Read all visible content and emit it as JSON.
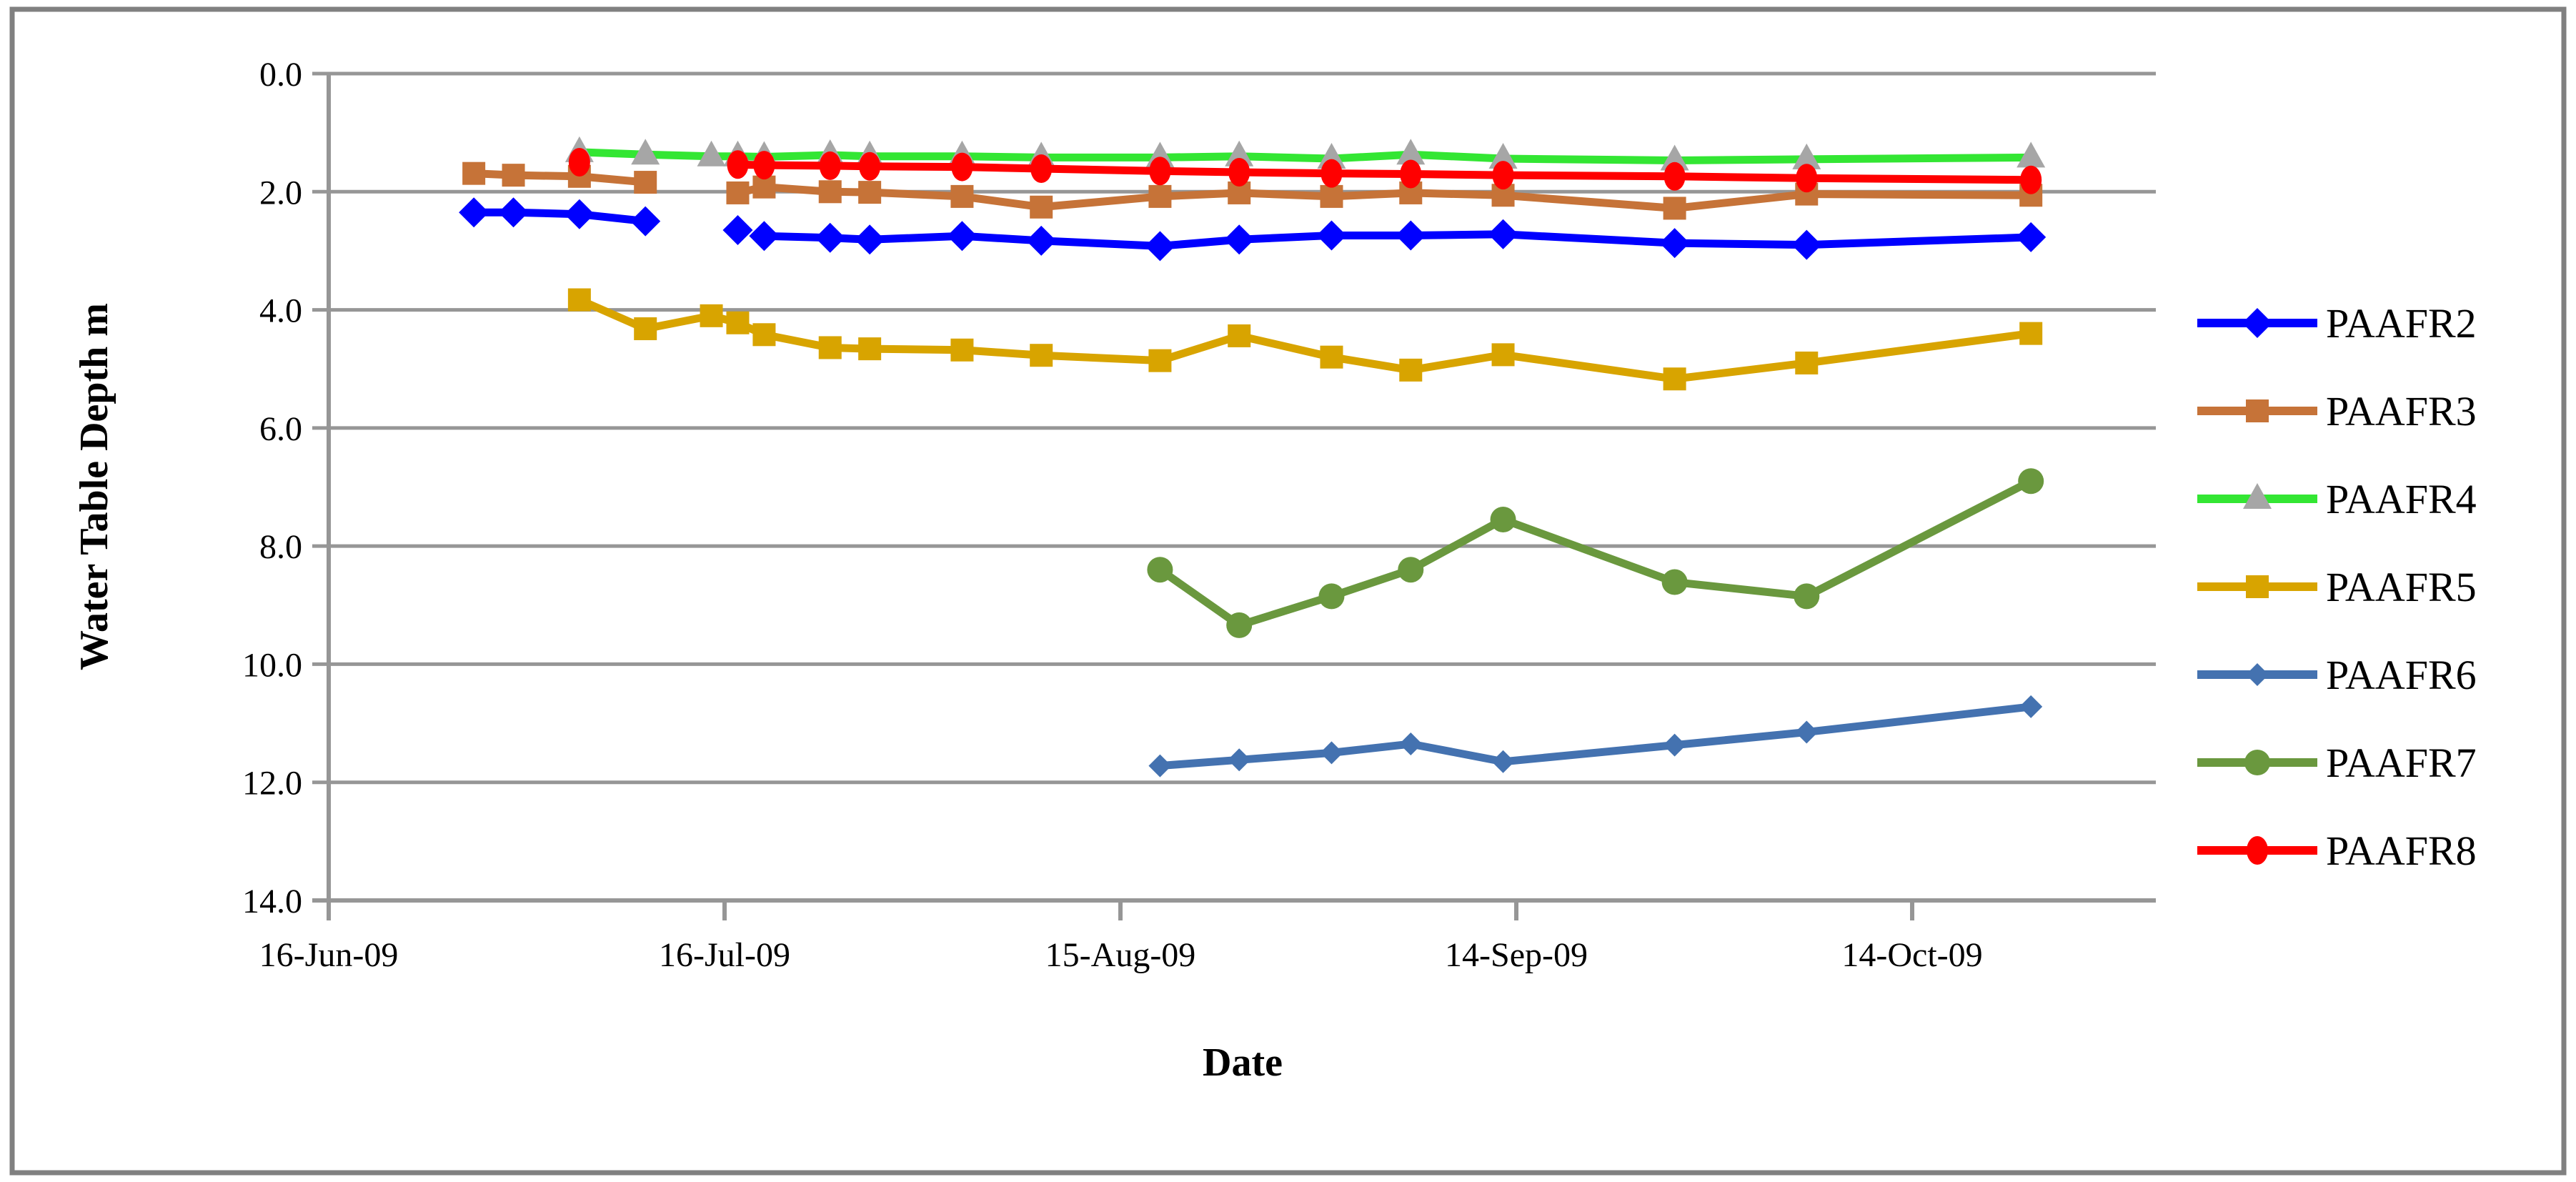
{
  "figure": {
    "background": "#FFFFFF",
    "border_color": "#808080",
    "gridline_color": "#969696",
    "axis_color": "#969696",
    "text_color": "#000000"
  },
  "chart_data": {
    "type": "line",
    "title": "",
    "xlabel": "Date",
    "ylabel": "Water Table Depth m",
    "grid": true,
    "legend_position": "right",
    "y_axis": {
      "inverted": true,
      "min": 0.0,
      "max": 14.0,
      "tick_interval": 2.0,
      "tick_labels": [
        "0.0",
        "2.0",
        "4.0",
        "6.0",
        "8.0",
        "10.0",
        "12.0",
        "14.0"
      ]
    },
    "x_axis": {
      "start": "16-Jun-09",
      "tick_interval_days": 30,
      "tick_labels": [
        "16-Jun-09",
        "16-Jul-09",
        "15-Aug-09",
        "14-Sep-09",
        "14-Oct-09"
      ]
    },
    "series": [
      {
        "name": "PAAFR2",
        "color": "#0000FF",
        "marker": "diamond",
        "marker_color": "#0000FF",
        "marker_size": 21,
        "breaks_after": [
          "10-Jul-09",
          "17-Jul-09"
        ],
        "points": [
          {
            "date": "27-Jun-09",
            "depth": 2.35
          },
          {
            "date": "30-Jun-09",
            "depth": 2.35
          },
          {
            "date": "05-Jul-09",
            "depth": 2.38
          },
          {
            "date": "10-Jul-09",
            "depth": 2.5
          },
          {
            "date": "17-Jul-09",
            "depth": 2.65
          },
          {
            "date": "19-Jul-09",
            "depth": 2.75
          },
          {
            "date": "24-Jul-09",
            "depth": 2.78
          },
          {
            "date": "27-Jul-09",
            "depth": 2.81
          },
          {
            "date": "03-Aug-09",
            "depth": 2.75
          },
          {
            "date": "09-Aug-09",
            "depth": 2.83
          },
          {
            "date": "18-Aug-09",
            "depth": 2.92
          },
          {
            "date": "24-Aug-09",
            "depth": 2.81
          },
          {
            "date": "31-Aug-09",
            "depth": 2.74
          },
          {
            "date": "06-Sep-09",
            "depth": 2.74
          },
          {
            "date": "13-Sep-09",
            "depth": 2.72
          },
          {
            "date": "26-Sep-09",
            "depth": 2.87
          },
          {
            "date": "06-Oct-09",
            "depth": 2.9
          },
          {
            "date": "23-Oct-09",
            "depth": 2.77
          }
        ]
      },
      {
        "name": "PAAFR3",
        "color": "#C67338",
        "marker": "square",
        "marker_color": "#C67338",
        "marker_size": 32,
        "breaks_after": [
          "10-Jul-09"
        ],
        "points": [
          {
            "date": "27-Jun-09",
            "depth": 1.69
          },
          {
            "date": "30-Jun-09",
            "depth": 1.72
          },
          {
            "date": "05-Jul-09",
            "depth": 1.74
          },
          {
            "date": "10-Jul-09",
            "depth": 1.84
          },
          {
            "date": "17-Jul-09",
            "depth": 2.02
          },
          {
            "date": "19-Jul-09",
            "depth": 1.92
          },
          {
            "date": "24-Jul-09",
            "depth": 2.0
          },
          {
            "date": "27-Jul-09",
            "depth": 2.01
          },
          {
            "date": "03-Aug-09",
            "depth": 2.08
          },
          {
            "date": "09-Aug-09",
            "depth": 2.26
          },
          {
            "date": "18-Aug-09",
            "depth": 2.08
          },
          {
            "date": "24-Aug-09",
            "depth": 2.02
          },
          {
            "date": "31-Aug-09",
            "depth": 2.08
          },
          {
            "date": "06-Sep-09",
            "depth": 2.02
          },
          {
            "date": "13-Sep-09",
            "depth": 2.06
          },
          {
            "date": "26-Sep-09",
            "depth": 2.28
          },
          {
            "date": "06-Oct-09",
            "depth": 2.04
          },
          {
            "date": "23-Oct-09",
            "depth": 2.06
          }
        ]
      },
      {
        "name": "PAAFR4",
        "color": "#33E633",
        "marker": "triangle",
        "marker_color": "#A6A6A6",
        "marker_size": 40,
        "breaks_after": [],
        "points": [
          {
            "date": "05-Jul-09",
            "depth": 1.33
          },
          {
            "date": "10-Jul-09",
            "depth": 1.37
          },
          {
            "date": "15-Jul-09",
            "depth": 1.4
          },
          {
            "date": "17-Jul-09",
            "depth": 1.4
          },
          {
            "date": "19-Jul-09",
            "depth": 1.41
          },
          {
            "date": "24-Jul-09",
            "depth": 1.38
          },
          {
            "date": "27-Jul-09",
            "depth": 1.4
          },
          {
            "date": "03-Aug-09",
            "depth": 1.4
          },
          {
            "date": "09-Aug-09",
            "depth": 1.42
          },
          {
            "date": "18-Aug-09",
            "depth": 1.42
          },
          {
            "date": "24-Aug-09",
            "depth": 1.4
          },
          {
            "date": "31-Aug-09",
            "depth": 1.44
          },
          {
            "date": "06-Sep-09",
            "depth": 1.37
          },
          {
            "date": "13-Sep-09",
            "depth": 1.44
          },
          {
            "date": "26-Sep-09",
            "depth": 1.47
          },
          {
            "date": "06-Oct-09",
            "depth": 1.45
          },
          {
            "date": "23-Oct-09",
            "depth": 1.42
          }
        ]
      },
      {
        "name": "PAAFR5",
        "color": "#D8A400",
        "marker": "square",
        "marker_color": "#D8A400",
        "marker_size": 32,
        "breaks_after": [],
        "points": [
          {
            "date": "05-Jul-09",
            "depth": 3.83
          },
          {
            "date": "10-Jul-09",
            "depth": 4.32
          },
          {
            "date": "15-Jul-09",
            "depth": 4.1
          },
          {
            "date": "17-Jul-09",
            "depth": 4.22
          },
          {
            "date": "19-Jul-09",
            "depth": 4.42
          },
          {
            "date": "24-Jul-09",
            "depth": 4.64
          },
          {
            "date": "27-Jul-09",
            "depth": 4.66
          },
          {
            "date": "03-Aug-09",
            "depth": 4.68
          },
          {
            "date": "09-Aug-09",
            "depth": 4.77
          },
          {
            "date": "18-Aug-09",
            "depth": 4.86
          },
          {
            "date": "24-Aug-09",
            "depth": 4.44
          },
          {
            "date": "31-Aug-09",
            "depth": 4.8
          },
          {
            "date": "06-Sep-09",
            "depth": 5.02
          },
          {
            "date": "13-Sep-09",
            "depth": 4.76
          },
          {
            "date": "26-Sep-09",
            "depth": 5.17
          },
          {
            "date": "06-Oct-09",
            "depth": 4.9
          },
          {
            "date": "23-Oct-09",
            "depth": 4.4
          }
        ]
      },
      {
        "name": "PAAFR6",
        "color": "#4472B0",
        "marker": "diamond",
        "marker_color": "#4472B0",
        "marker_size": 16,
        "breaks_after": [],
        "points": [
          {
            "date": "18-Aug-09",
            "depth": 11.72
          },
          {
            "date": "24-Aug-09",
            "depth": 11.62
          },
          {
            "date": "31-Aug-09",
            "depth": 11.5
          },
          {
            "date": "06-Sep-09",
            "depth": 11.35
          },
          {
            "date": "13-Sep-09",
            "depth": 11.65
          },
          {
            "date": "26-Sep-09",
            "depth": 11.37
          },
          {
            "date": "06-Oct-09",
            "depth": 11.15
          },
          {
            "date": "23-Oct-09",
            "depth": 10.72
          }
        ]
      },
      {
        "name": "PAAFR7",
        "color": "#6A983E",
        "marker": "circle",
        "marker_color": "#6A983E",
        "marker_size": 18,
        "breaks_after": [],
        "points": [
          {
            "date": "18-Aug-09",
            "depth": 8.4
          },
          {
            "date": "24-Aug-09",
            "depth": 9.34
          },
          {
            "date": "31-Aug-09",
            "depth": 8.85
          },
          {
            "date": "06-Sep-09",
            "depth": 8.4
          },
          {
            "date": "13-Sep-09",
            "depth": 7.55
          },
          {
            "date": "26-Sep-09",
            "depth": 8.61
          },
          {
            "date": "06-Oct-09",
            "depth": 8.85
          },
          {
            "date": "23-Oct-09",
            "depth": 6.9
          }
        ]
      },
      {
        "name": "PAAFR8",
        "color": "#FF0000",
        "marker": "ellipse",
        "marker_color": "#FF0000",
        "marker_size": 20,
        "breaks_after": [
          "05-Jul-09"
        ],
        "points": [
          {
            "date": "05-Jul-09",
            "depth": 1.5
          },
          {
            "date": "17-Jul-09",
            "depth": 1.54
          },
          {
            "date": "19-Jul-09",
            "depth": 1.55
          },
          {
            "date": "24-Jul-09",
            "depth": 1.56
          },
          {
            "date": "27-Jul-09",
            "depth": 1.57
          },
          {
            "date": "03-Aug-09",
            "depth": 1.58
          },
          {
            "date": "09-Aug-09",
            "depth": 1.61
          },
          {
            "date": "18-Aug-09",
            "depth": 1.65
          },
          {
            "date": "24-Aug-09",
            "depth": 1.67
          },
          {
            "date": "31-Aug-09",
            "depth": 1.69
          },
          {
            "date": "06-Sep-09",
            "depth": 1.7
          },
          {
            "date": "13-Sep-09",
            "depth": 1.72
          },
          {
            "date": "26-Sep-09",
            "depth": 1.74
          },
          {
            "date": "06-Oct-09",
            "depth": 1.77
          },
          {
            "date": "23-Oct-09",
            "depth": 1.8
          }
        ]
      }
    ],
    "legend_entries": [
      "PAAFR2",
      "PAAFR3",
      "PAAFR4",
      "PAAFR5",
      "PAAFR6",
      "PAAFR7",
      "PAAFR8"
    ]
  }
}
